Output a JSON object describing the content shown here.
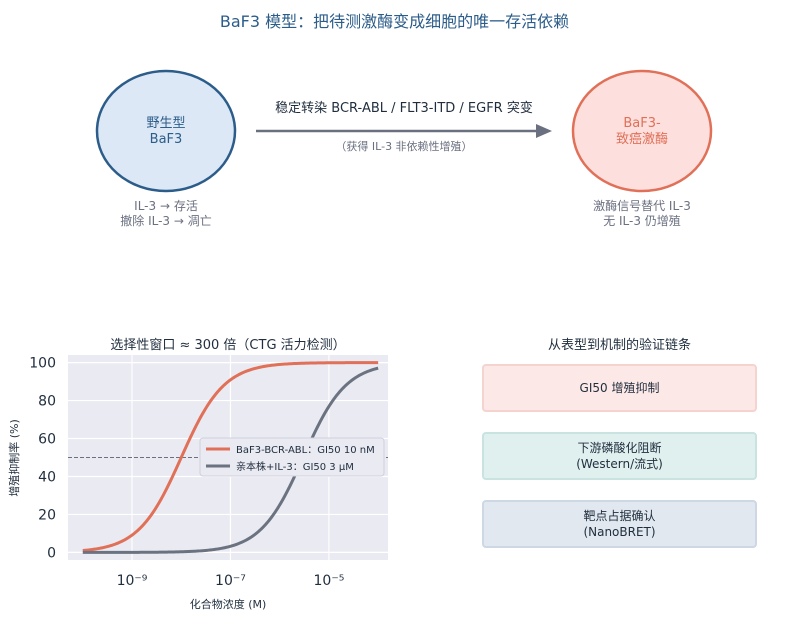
{
  "title": "BaF3 模型：把待测激酶变成细胞的唯一存活依赖",
  "flow": {
    "left_node": {
      "line1": "野生型",
      "line2": "BaF3"
    },
    "left_note": {
      "line1": "IL-3 → 存活",
      "line2": "撤除 IL-3 → 凋亡"
    },
    "arrow_label": "稳定转染 BCR-ABL / FLT3-ITD / EGFR 突变",
    "arrow_sub": "（获得 IL-3 非依赖性增殖）",
    "right_node": {
      "line1": "BaF3-",
      "line2": "致癌激酶"
    },
    "right_note": {
      "line1": "激酶信号替代 IL-3",
      "line2": "无 IL-3 仍增殖"
    },
    "colors": {
      "left_fill": "#dce8f5",
      "left_stroke": "#2c5d8a",
      "right_fill": "#fde0de",
      "right_stroke": "#e07058",
      "arrow": "#6b7080"
    }
  },
  "chart_data": {
    "type": "line",
    "title": "选择性窗口 ≈ 300 倍（CTG 活力检测）",
    "xlabel": "化合物浓度 (M)",
    "ylabel": "增殖抑制率 (%)",
    "x_scale": "log",
    "xlim": [
      1e-10,
      0.0001
    ],
    "ylim": [
      0,
      100
    ],
    "x_ticks": [
      "10⁻⁹",
      "10⁻⁷",
      "10⁻⁵"
    ],
    "y_ticks": [
      "0",
      "20",
      "40",
      "60",
      "80",
      "100"
    ],
    "reference_line_y": 50,
    "grid": true,
    "legend_position": "center-right",
    "series": [
      {
        "name": "BaF3-BCR-ABL：GI50 10 nM",
        "ic50": 1e-08,
        "hill": 1,
        "color": "#e07058"
      },
      {
        "name": "亲本株+IL-3：GI50 3 μM",
        "ic50": 3e-06,
        "hill": 1,
        "color": "#6b7280"
      }
    ]
  },
  "chain": {
    "title": "从表型到机制的验证链条",
    "items": [
      {
        "line1": "GI50 增殖抑制",
        "line2": "",
        "fill": "#fce8e6",
        "border": "#f5d3cf"
      },
      {
        "line1": "下游磷酸化阻断",
        "line2": "(Western/流式)",
        "fill": "#e0f0ef",
        "border": "#c9e3e1"
      },
      {
        "line1": "靶点占据确认",
        "line2": "(NanoBRET)",
        "fill": "#e1e8f0",
        "border": "#cdd8e4"
      }
    ]
  }
}
